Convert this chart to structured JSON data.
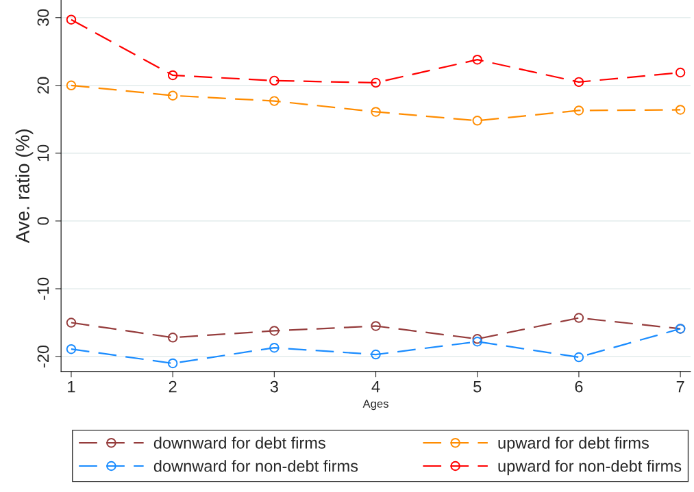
{
  "chart_data": {
    "type": "line",
    "xlabel": "Ages",
    "ylabel": "Ave. ratio (%)",
    "x": [
      1,
      2,
      3,
      4,
      5,
      6,
      7
    ],
    "series": [
      {
        "name": "downward for debt firms",
        "color": "#953c3c",
        "values": [
          -15.0,
          -17.2,
          -16.2,
          -15.5,
          -17.4,
          -14.3,
          -15.9
        ]
      },
      {
        "name": "downward for non-debt firms",
        "color": "#1a8cff",
        "values": [
          -18.9,
          -21.0,
          -18.7,
          -19.7,
          -17.8,
          -20.1,
          -15.9
        ]
      },
      {
        "name": "upward for debt firms",
        "color": "#ff8c00",
        "values": [
          20.0,
          18.5,
          17.7,
          16.1,
          14.8,
          16.3,
          16.4
        ]
      },
      {
        "name": "upward for non-debt firms",
        "color": "#ff0000",
        "values": [
          29.7,
          21.5,
          20.7,
          20.4,
          23.8,
          20.5,
          21.9
        ]
      }
    ],
    "xlim": [
      0.9,
      7.1
    ],
    "xticks": [
      1,
      2,
      3,
      4,
      5,
      6,
      7
    ],
    "ylim": [
      -22.2,
      32.6
    ],
    "yticks": [
      -20,
      -10,
      0,
      10,
      20,
      30
    ],
    "grid": "y",
    "legend": "bottom",
    "marker": "circle",
    "line_style": "dashed"
  }
}
